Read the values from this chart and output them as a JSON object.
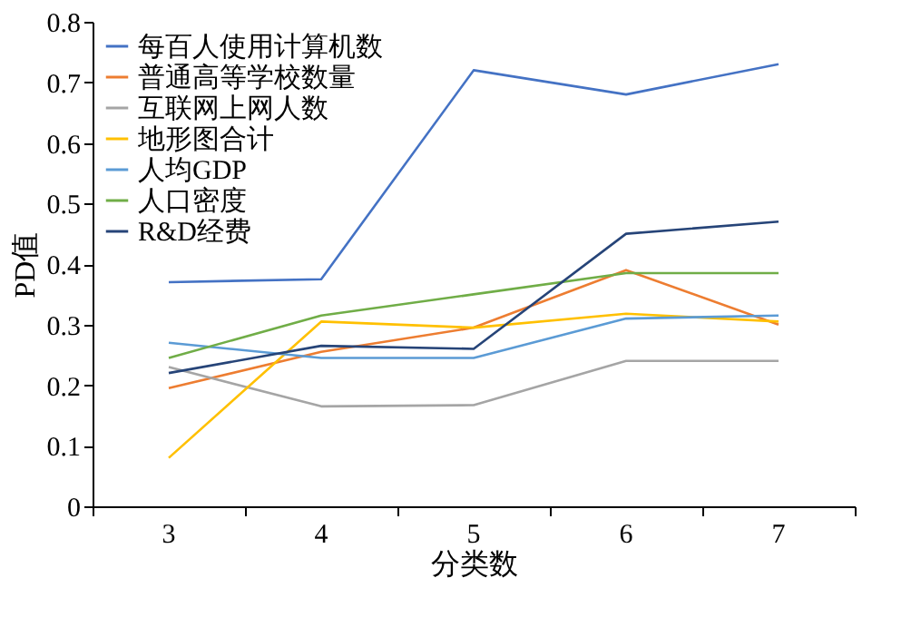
{
  "chart_data": {
    "type": "line",
    "xlabel": "分类数",
    "ylabel": "PD值",
    "categories": [
      "3",
      "4",
      "5",
      "6",
      "7"
    ],
    "ylim": [
      0,
      0.8
    ],
    "yticks": [
      0,
      0.1,
      0.2,
      0.3,
      0.4,
      0.5,
      0.6,
      0.7,
      0.8
    ],
    "grid": false,
    "legend": "top left",
    "marker": "none",
    "line_style": "solid",
    "series": [
      {
        "name": "每百人使用计算机数",
        "color": "#4472c4",
        "values": [
          0.37,
          0.375,
          0.72,
          0.68,
          0.73
        ]
      },
      {
        "name": "普通高等学校数量",
        "color": "#ed7d31",
        "values": [
          0.195,
          0.255,
          0.295,
          0.39,
          0.3
        ]
      },
      {
        "name": "互联网上网人数",
        "color": "#a5a5a5",
        "values": [
          0.23,
          0.165,
          0.167,
          0.24,
          0.24
        ]
      },
      {
        "name": "地形图合计",
        "color": "#ffc000",
        "values": [
          0.08,
          0.305,
          0.295,
          0.318,
          0.305
        ]
      },
      {
        "name": "人均GDP",
        "color": "#5b9bd5",
        "values": [
          0.27,
          0.245,
          0.245,
          0.31,
          0.315
        ]
      },
      {
        "name": "人口密度",
        "color": "#70ad47",
        "values": [
          0.245,
          0.315,
          0.35,
          0.385,
          0.385
        ]
      },
      {
        "name": "R&D经费",
        "color": "#264478",
        "values": [
          0.22,
          0.265,
          0.26,
          0.45,
          0.47
        ]
      }
    ]
  }
}
